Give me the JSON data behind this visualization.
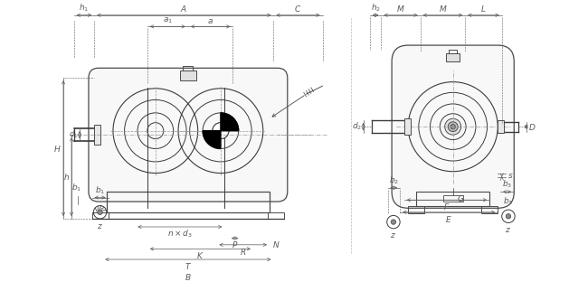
{
  "bg_color": "#ffffff",
  "line_color": "#4a4a4a",
  "dim_color": "#5a5a5a",
  "figsize": [
    6.5,
    3.12
  ],
  "dpi": 100
}
